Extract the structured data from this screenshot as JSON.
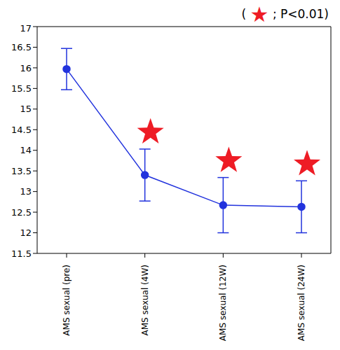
{
  "chart_data": {
    "type": "line",
    "annotation": "( ★ ; P<0.01)",
    "categories": [
      "AMS sexual (pre)",
      "AMS sexual (4W)",
      "AMS sexual (12W)",
      "AMS sexual (24W)"
    ],
    "values": [
      15.97,
      13.4,
      12.67,
      12.63
    ],
    "error": [
      0.5,
      0.63,
      0.67,
      0.63
    ],
    "significant": [
      false,
      true,
      true,
      true
    ],
    "color": "#2233dd",
    "marker": "circle",
    "ylim": [
      11.5,
      17
    ],
    "yticks": [
      11.5,
      12,
      12.5,
      13,
      13.5,
      14,
      14.5,
      15,
      15.5,
      16,
      16.5,
      17
    ],
    "grid": false
  }
}
